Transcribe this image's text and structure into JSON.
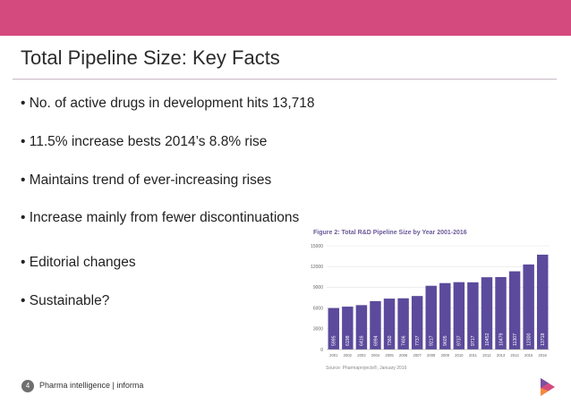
{
  "slide": {
    "title": "Total Pipeline Size: Key Facts",
    "bullets": [
      "• No. of active drugs in development hits 13,718",
      "• 11.5% increase bests 2014’s 8.8% rise",
      "• Maintains trend of ever-increasing rises",
      "• Increase mainly from fewer discontinuations",
      "• Editorial changes",
      "• Sustainable?"
    ],
    "footer": {
      "page_number": "4",
      "text": "Pharma intelligence | informa"
    }
  },
  "colors": {
    "header_bar": "#d44a7e",
    "bar_fill": "#5c4a9c",
    "figure_title": "#6a5a9a"
  },
  "chart_data": {
    "type": "bar",
    "title": "Figure 2: Total R&D Pipeline Size by Year 2001-2016",
    "source": "Source: Pharmaprojects®, January 2016",
    "categories": [
      "2001",
      "2002",
      "2003",
      "2004",
      "2005",
      "2006",
      "2007",
      "2008",
      "2009",
      "2010",
      "2011",
      "2012",
      "2013",
      "2014",
      "2015",
      "2016"
    ],
    "values": [
      5995,
      6198,
      6416,
      6994,
      7360,
      7406,
      7737,
      9217,
      9605,
      9737,
      9717,
      10452,
      10479,
      11307,
      12300,
      13718
    ],
    "yticks": [
      0,
      3000,
      6000,
      9000,
      12000,
      15000
    ],
    "ylim": [
      0,
      15000
    ],
    "grid": true
  }
}
